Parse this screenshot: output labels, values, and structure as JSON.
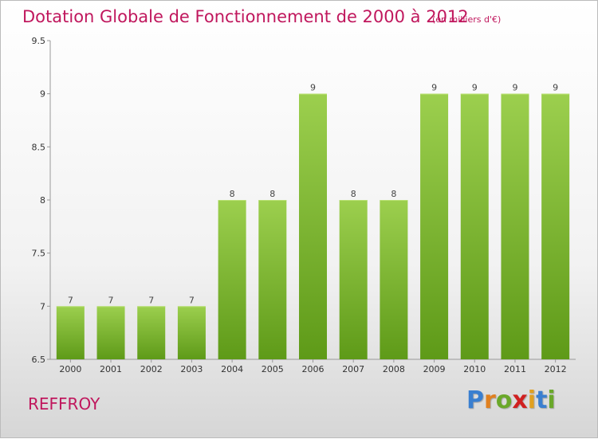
{
  "header": {
    "title": "Dotation Globale de Fonctionnement de 2000 à 2012",
    "unit": "(en milliers d'€)"
  },
  "footer": {
    "commune": "REFFROY",
    "logo_letters": [
      {
        "ch": "P",
        "color": "#3a7fd0"
      },
      {
        "ch": "r",
        "color": "#e08020"
      },
      {
        "ch": "o",
        "color": "#6aa82a"
      },
      {
        "ch": "x",
        "color": "#d02020"
      },
      {
        "ch": "i",
        "color": "#e0a020"
      },
      {
        "ch": "t",
        "color": "#3a7fd0"
      },
      {
        "ch": "i",
        "color": "#6aa82a"
      }
    ]
  },
  "chart_data": {
    "type": "bar",
    "categories": [
      "2000",
      "2001",
      "2002",
      "2003",
      "2004",
      "2005",
      "2006",
      "2007",
      "2008",
      "2009",
      "2010",
      "2011",
      "2012"
    ],
    "values": [
      7,
      7,
      7,
      7,
      8,
      8,
      9,
      8,
      8,
      9,
      9,
      9,
      9
    ],
    "value_labels": [
      "7",
      "7",
      "7",
      "7",
      "8",
      "8",
      "9",
      "8",
      "8",
      "9",
      "9",
      "9",
      "9"
    ],
    "ylim": [
      6.5,
      9.5
    ],
    "yticks": [
      6.5,
      7,
      7.5,
      8,
      8.5,
      9,
      9.5
    ],
    "ytick_labels": [
      "6.5",
      "7",
      "7.5",
      "8",
      "8.5",
      "9",
      "9.5"
    ],
    "bar_color_top": "#9ccf4e",
    "bar_color_bottom": "#5e9a18",
    "grid": false
  }
}
